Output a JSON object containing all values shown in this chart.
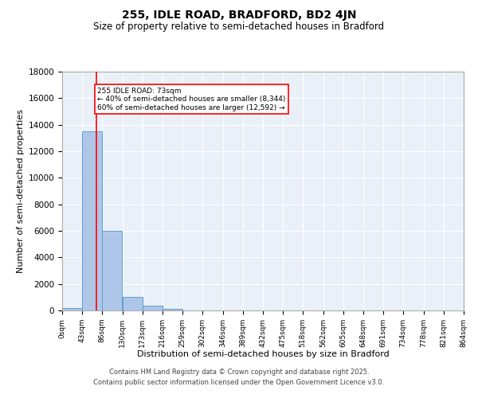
{
  "title": "255, IDLE ROAD, BRADFORD, BD2 4JN",
  "subtitle": "Size of property relative to semi-detached houses in Bradford",
  "xlabel": "Distribution of semi-detached houses by size in Bradford",
  "ylabel": "Number of semi-detached properties",
  "property_size": 73,
  "property_label": "255 IDLE ROAD: 73sqm",
  "pct_smaller": 40,
  "pct_larger": 60,
  "count_smaller": 8344,
  "count_larger": 12592,
  "bin_edges": [
    0,
    43,
    86,
    130,
    173,
    216,
    259,
    302,
    346,
    389,
    432,
    475,
    518,
    562,
    605,
    648,
    691,
    734,
    778,
    821,
    864
  ],
  "bin_labels": [
    "0sqm",
    "43sqm",
    "86sqm",
    "130sqm",
    "173sqm",
    "216sqm",
    "259sqm",
    "302sqm",
    "346sqm",
    "389sqm",
    "432sqm",
    "475sqm",
    "518sqm",
    "562sqm",
    "605sqm",
    "648sqm",
    "691sqm",
    "734sqm",
    "778sqm",
    "821sqm",
    "864sqm"
  ],
  "counts": [
    200,
    13500,
    6000,
    1000,
    350,
    120,
    0,
    0,
    0,
    0,
    0,
    0,
    0,
    0,
    0,
    0,
    0,
    0,
    0,
    0
  ],
  "bar_color": "#aec6e8",
  "bar_edge_color": "#5a9fd4",
  "vline_color": "red",
  "background_color": "#eaf0f8",
  "ylim": [
    0,
    18000
  ],
  "yticks": [
    0,
    2000,
    4000,
    6000,
    8000,
    10000,
    12000,
    14000,
    16000,
    18000
  ],
  "footer_line1": "Contains HM Land Registry data © Crown copyright and database right 2025.",
  "footer_line2": "Contains public sector information licensed under the Open Government Licence v3.0."
}
